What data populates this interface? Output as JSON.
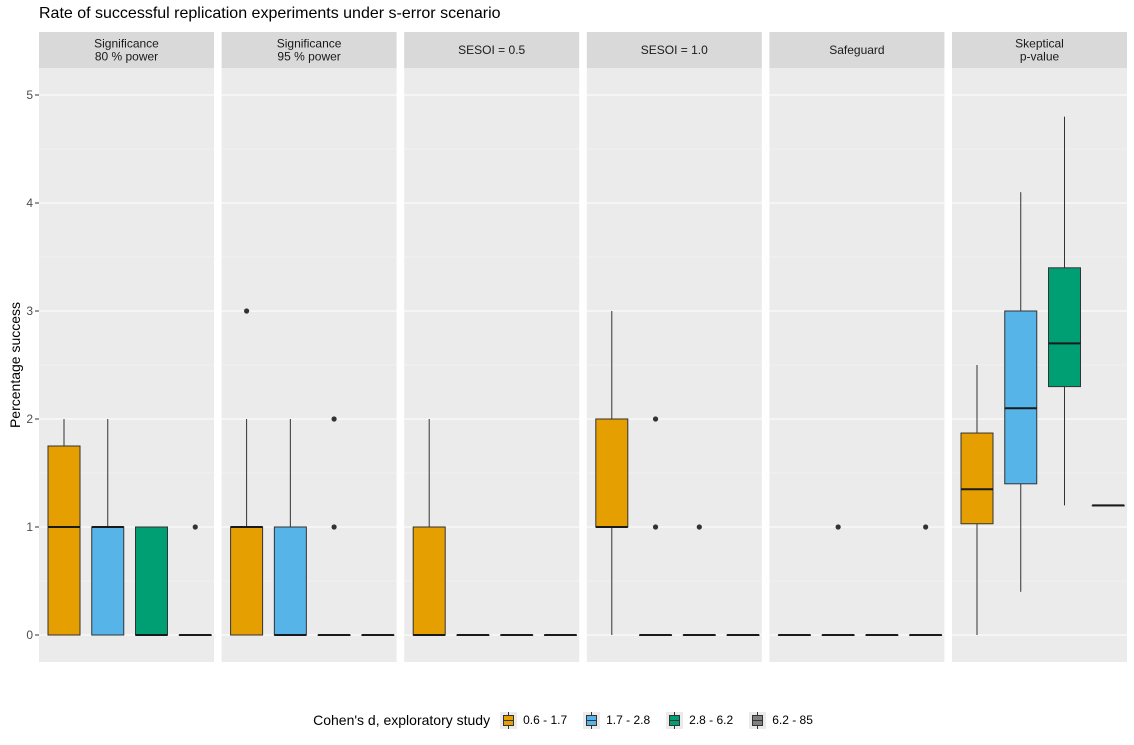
{
  "title": "Rate of successful replication experiments under s-error scenario",
  "legend": {
    "title": "Cohen's d, exploratory study",
    "items": [
      {
        "label": "0.6 - 1.7",
        "color": "#E69F00"
      },
      {
        "label": "1.7 - 2.8",
        "color": "#56B4E9"
      },
      {
        "label": "2.8 - 6.2",
        "color": "#009E73"
      },
      {
        "label": "6.2 - 85",
        "color": "#808080"
      }
    ]
  },
  "chart_data": {
    "type": "boxplot",
    "title": "Rate of successful replication experiments under s-error scenario",
    "ylabel": "Percentage success",
    "xlabel": "",
    "ylim": [
      -0.25,
      5.25
    ],
    "yticks": [
      0,
      1,
      2,
      3,
      4,
      5
    ],
    "grid": true,
    "legend_position": "bottom",
    "groups": [
      "0.6 - 1.7",
      "1.7 - 2.8",
      "2.8 - 6.2",
      "6.2 - 85"
    ],
    "facets": [
      {
        "label": "Significance\n80 % power",
        "boxes": [
          {
            "group": "0.6 - 1.7",
            "min": 0,
            "q1": 0,
            "median": 1,
            "q3": 1.75,
            "max": 2,
            "outliers": []
          },
          {
            "group": "1.7 - 2.8",
            "min": 0,
            "q1": 0,
            "median": 1,
            "q3": 1,
            "max": 2,
            "outliers": []
          },
          {
            "group": "2.8 - 6.2",
            "min": 0,
            "q1": 0,
            "median": 0,
            "q3": 1,
            "max": 1,
            "outliers": []
          },
          {
            "group": "6.2 - 85",
            "min": 0,
            "q1": 0,
            "median": 0,
            "q3": 0,
            "max": 0,
            "outliers": [
              1
            ]
          }
        ]
      },
      {
        "label": "Significance\n95 % power",
        "boxes": [
          {
            "group": "0.6 - 1.7",
            "min": 0,
            "q1": 0,
            "median": 1,
            "q3": 1,
            "max": 2,
            "outliers": [
              3
            ]
          },
          {
            "group": "1.7 - 2.8",
            "min": 0,
            "q1": 0,
            "median": 0,
            "q3": 1,
            "max": 2,
            "outliers": []
          },
          {
            "group": "2.8 - 6.2",
            "min": 0,
            "q1": 0,
            "median": 0,
            "q3": 0,
            "max": 0,
            "outliers": [
              1,
              2
            ]
          },
          {
            "group": "6.2 - 85",
            "min": 0,
            "q1": 0,
            "median": 0,
            "q3": 0,
            "max": 0,
            "outliers": []
          }
        ]
      },
      {
        "label": "SESOI = 0.5",
        "boxes": [
          {
            "group": "0.6 - 1.7",
            "min": 0,
            "q1": 0,
            "median": 0,
            "q3": 1,
            "max": 2,
            "outliers": []
          },
          {
            "group": "1.7 - 2.8",
            "min": 0,
            "q1": 0,
            "median": 0,
            "q3": 0,
            "max": 0,
            "outliers": []
          },
          {
            "group": "2.8 - 6.2",
            "min": 0,
            "q1": 0,
            "median": 0,
            "q3": 0,
            "max": 0,
            "outliers": []
          },
          {
            "group": "6.2 - 85",
            "min": 0,
            "q1": 0,
            "median": 0,
            "q3": 0,
            "max": 0,
            "outliers": []
          }
        ]
      },
      {
        "label": "SESOI = 1.0",
        "boxes": [
          {
            "group": "0.6 - 1.7",
            "min": 0,
            "q1": 1,
            "median": 1,
            "q3": 2,
            "max": 3,
            "outliers": []
          },
          {
            "group": "1.7 - 2.8",
            "min": 0,
            "q1": 0,
            "median": 0,
            "q3": 0,
            "max": 0,
            "outliers": [
              1,
              2
            ]
          },
          {
            "group": "2.8 - 6.2",
            "min": 0,
            "q1": 0,
            "median": 0,
            "q3": 0,
            "max": 0,
            "outliers": [
              1
            ]
          },
          {
            "group": "6.2 - 85",
            "min": 0,
            "q1": 0,
            "median": 0,
            "q3": 0,
            "max": 0,
            "outliers": []
          }
        ]
      },
      {
        "label": "Safeguard",
        "boxes": [
          {
            "group": "0.6 - 1.7",
            "min": 0,
            "q1": 0,
            "median": 0,
            "q3": 0,
            "max": 0,
            "outliers": []
          },
          {
            "group": "1.7 - 2.8",
            "min": 0,
            "q1": 0,
            "median": 0,
            "q3": 0,
            "max": 0,
            "outliers": [
              1
            ]
          },
          {
            "group": "2.8 - 6.2",
            "min": 0,
            "q1": 0,
            "median": 0,
            "q3": 0,
            "max": 0,
            "outliers": []
          },
          {
            "group": "6.2 - 85",
            "min": 0,
            "q1": 0,
            "median": 0,
            "q3": 0,
            "max": 0,
            "outliers": [
              1
            ]
          }
        ]
      },
      {
        "label": "Skeptical\np-value",
        "boxes": [
          {
            "group": "0.6 - 1.7",
            "min": 0,
            "q1": 1.03,
            "median": 1.35,
            "q3": 1.87,
            "max": 2.5,
            "outliers": []
          },
          {
            "group": "1.7 - 2.8",
            "min": 0.4,
            "q1": 1.4,
            "median": 2.1,
            "q3": 3.0,
            "max": 4.1,
            "outliers": []
          },
          {
            "group": "2.8 - 6.2",
            "min": 1.2,
            "q1": 2.3,
            "median": 2.7,
            "q3": 3.4,
            "max": 4.8,
            "outliers": []
          },
          {
            "group": "6.2 - 85",
            "min": 1.2,
            "q1": 1.2,
            "median": 1.2,
            "q3": 1.2,
            "max": 1.2,
            "outliers": []
          }
        ]
      }
    ]
  }
}
